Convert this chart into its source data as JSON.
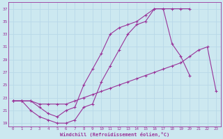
{
  "line1_upper": {
    "x": [
      0,
      1,
      2,
      3,
      4,
      5,
      6,
      7,
      8,
      9,
      10,
      11,
      12,
      13,
      14,
      15,
      16,
      17,
      18,
      19,
      20,
      21,
      22,
      23
    ],
    "y": [
      22.5,
      22.5,
      21.0,
      20.0,
      19.5,
      19.0,
      19.0,
      19.5,
      21.5,
      22.0,
      25.5,
      28.0,
      30.5,
      33.0,
      34.5,
      35.0,
      37.0,
      37.0,
      37.0,
      37.0,
      37.0,
      null,
      null,
      null
    ]
  },
  "line2_mid": {
    "x": [
      0,
      1,
      2,
      3,
      4,
      5,
      6,
      7,
      8,
      9,
      10,
      11,
      12,
      13,
      14,
      15,
      16,
      17,
      18,
      19,
      20,
      21,
      22,
      23
    ],
    "y": [
      22.5,
      22.5,
      22.5,
      21.5,
      20.5,
      20.0,
      21.0,
      21.5,
      25.0,
      27.5,
      30.0,
      33.0,
      34.0,
      34.5,
      35.0,
      36.0,
      37.0,
      37.0,
      31.5,
      29.5,
      26.5,
      null,
      null,
      null
    ]
  },
  "line3_lower": {
    "x": [
      0,
      1,
      2,
      3,
      4,
      5,
      6,
      7,
      8,
      9,
      10,
      11,
      12,
      13,
      14,
      15,
      16,
      17,
      18,
      19,
      20,
      21,
      22,
      23
    ],
    "y": [
      22.5,
      22.5,
      22.5,
      22.0,
      22.0,
      22.0,
      22.0,
      22.5,
      23.0,
      23.5,
      24.0,
      24.5,
      25.0,
      25.5,
      26.0,
      26.5,
      27.0,
      27.5,
      28.0,
      28.5,
      29.5,
      30.5,
      31.0,
      24.0
    ]
  },
  "color": "#993399",
  "bg_color": "#cce8f0",
  "grid_color": "#b8d8e8",
  "ylabel_vals": [
    19,
    21,
    23,
    25,
    27,
    29,
    31,
    33,
    35,
    37
  ],
  "xlabel_vals": [
    0,
    1,
    2,
    3,
    4,
    5,
    6,
    7,
    8,
    9,
    10,
    11,
    12,
    13,
    14,
    15,
    16,
    17,
    18,
    19,
    20,
    21,
    22,
    23
  ],
  "xlabel": "Windchill (Refroidissement éolien,°C)",
  "ylim": [
    18.5,
    38.0
  ],
  "xlim": [
    -0.5,
    23.5
  ],
  "marker_size": 2.0,
  "line_width": 0.8
}
